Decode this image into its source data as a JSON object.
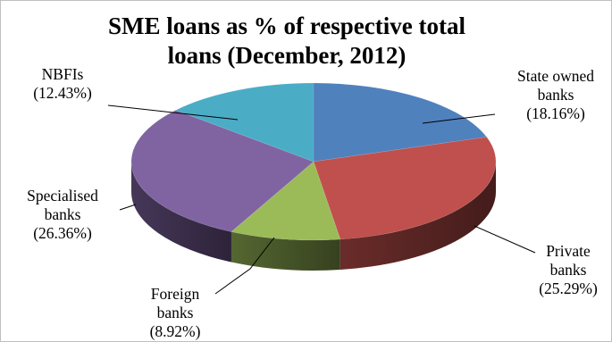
{
  "chart_data": {
    "type": "pie",
    "title": "SME loans as % of respective total loans (December, 2012)",
    "title_lines": [
      "SME loans as % of respective total",
      "loans (December, 2012)"
    ],
    "slices": [
      {
        "label_lines": [
          "State owned",
          "banks"
        ],
        "value_text": "(18.16%)",
        "value": 18.16,
        "color": "#4f81bd"
      },
      {
        "label_lines": [
          "Private",
          "banks"
        ],
        "value_text": "(25.29%)",
        "value": 25.29,
        "color": "#c0504d"
      },
      {
        "label_lines": [
          "Foreign",
          "banks"
        ],
        "value_text": "(8.92%)",
        "value": 8.92,
        "color": "#9bbb59"
      },
      {
        "label_lines": [
          "Specialised",
          "banks"
        ],
        "value_text": "(26.36%)",
        "value": 26.36,
        "color": "#8064a2"
      },
      {
        "label_lines": [
          "NBFIs"
        ],
        "value_text": "(12.43%)",
        "value": 12.43,
        "color": "#4bacc6"
      }
    ],
    "style": "3d",
    "legend": "none"
  }
}
